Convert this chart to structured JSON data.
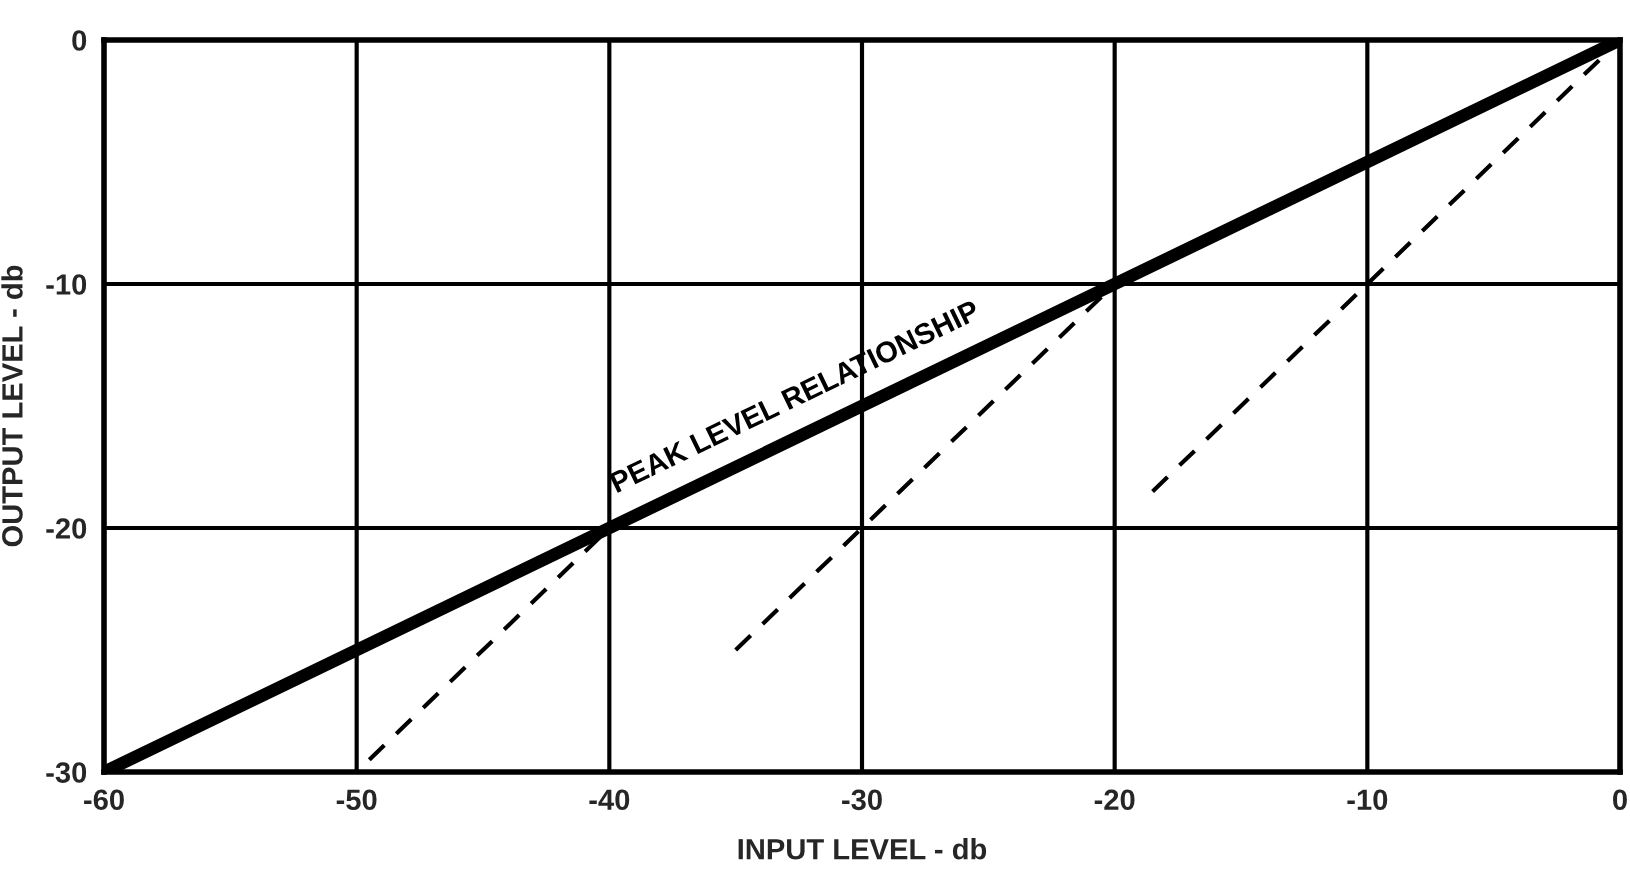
{
  "chart_data": {
    "type": "line",
    "xlabel": "INPUT LEVEL - db",
    "ylabel": "OUTPUT LEVEL - db",
    "xlim": [
      -60,
      0
    ],
    "ylim": [
      -30,
      0
    ],
    "xticks": [
      -60,
      -50,
      -40,
      -30,
      -20,
      -10,
      0
    ],
    "yticks": [
      -30,
      -20,
      -10,
      0
    ],
    "grid": true,
    "legend": false,
    "series": [
      {
        "name": "PEAK LEVEL RELATIONSHIP",
        "color": "#000000",
        "x": [
          -60,
          0
        ],
        "values": [
          -30,
          0
        ],
        "line_style": "solid"
      },
      {
        "color": "#000000",
        "x": [
          -49.5,
          -40
        ],
        "values": [
          -29.5,
          -20
        ],
        "line_style": "dashed"
      },
      {
        "color": "#000000",
        "x": [
          -35,
          -20
        ],
        "values": [
          -25,
          -10
        ],
        "line_style": "dashed"
      },
      {
        "color": "#000000",
        "x": [
          -18.5,
          0
        ],
        "values": [
          -18.5,
          0
        ],
        "line_style": "dashed"
      }
    ]
  }
}
